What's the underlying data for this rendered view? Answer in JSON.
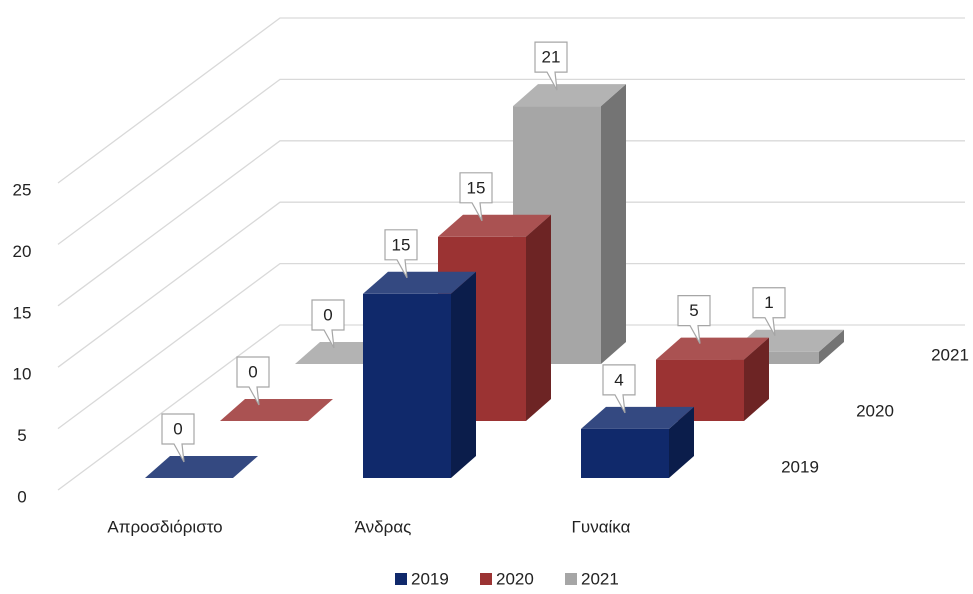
{
  "chart_data": {
    "type": "bar3d",
    "categories": [
      "Απροσδιόριστο",
      "Άνδρας",
      "Γυναίκα"
    ],
    "series": [
      {
        "name": "2019",
        "color": "#10296b",
        "values": [
          0,
          15,
          4
        ]
      },
      {
        "name": "2020",
        "color": "#9b3333",
        "values": [
          0,
          15,
          5
        ]
      },
      {
        "name": "2021",
        "color": "#a6a6a6",
        "values": [
          0,
          21,
          1
        ]
      }
    ],
    "ylim": [
      0,
      25
    ],
    "yticks": [
      0,
      5,
      10,
      15,
      20,
      25
    ],
    "grid": true,
    "legend": "bottom"
  }
}
